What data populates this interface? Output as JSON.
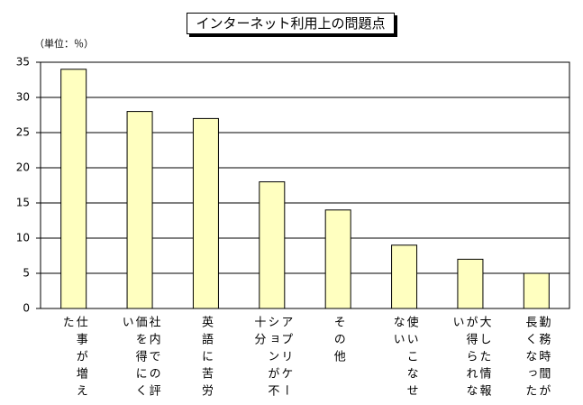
{
  "chart_data": {
    "type": "bar",
    "title": "インターネット利用上の問題点",
    "ylabel": "（単位：％）",
    "categories": [
      "仕事が増えた",
      "社内での評価を得にくい",
      "英語に苦労",
      "アプリケーションが不十分",
      "その他",
      "使いこなせない",
      "大した情報が得られない",
      "勤務時間が長くなった"
    ],
    "values": [
      34,
      28,
      27,
      18,
      14,
      9,
      7,
      5
    ],
    "color": "#ffffc0",
    "ylim": [
      0,
      35
    ],
    "yticks": [
      0,
      5,
      10,
      15,
      20,
      25,
      30,
      35
    ],
    "grid": true
  }
}
